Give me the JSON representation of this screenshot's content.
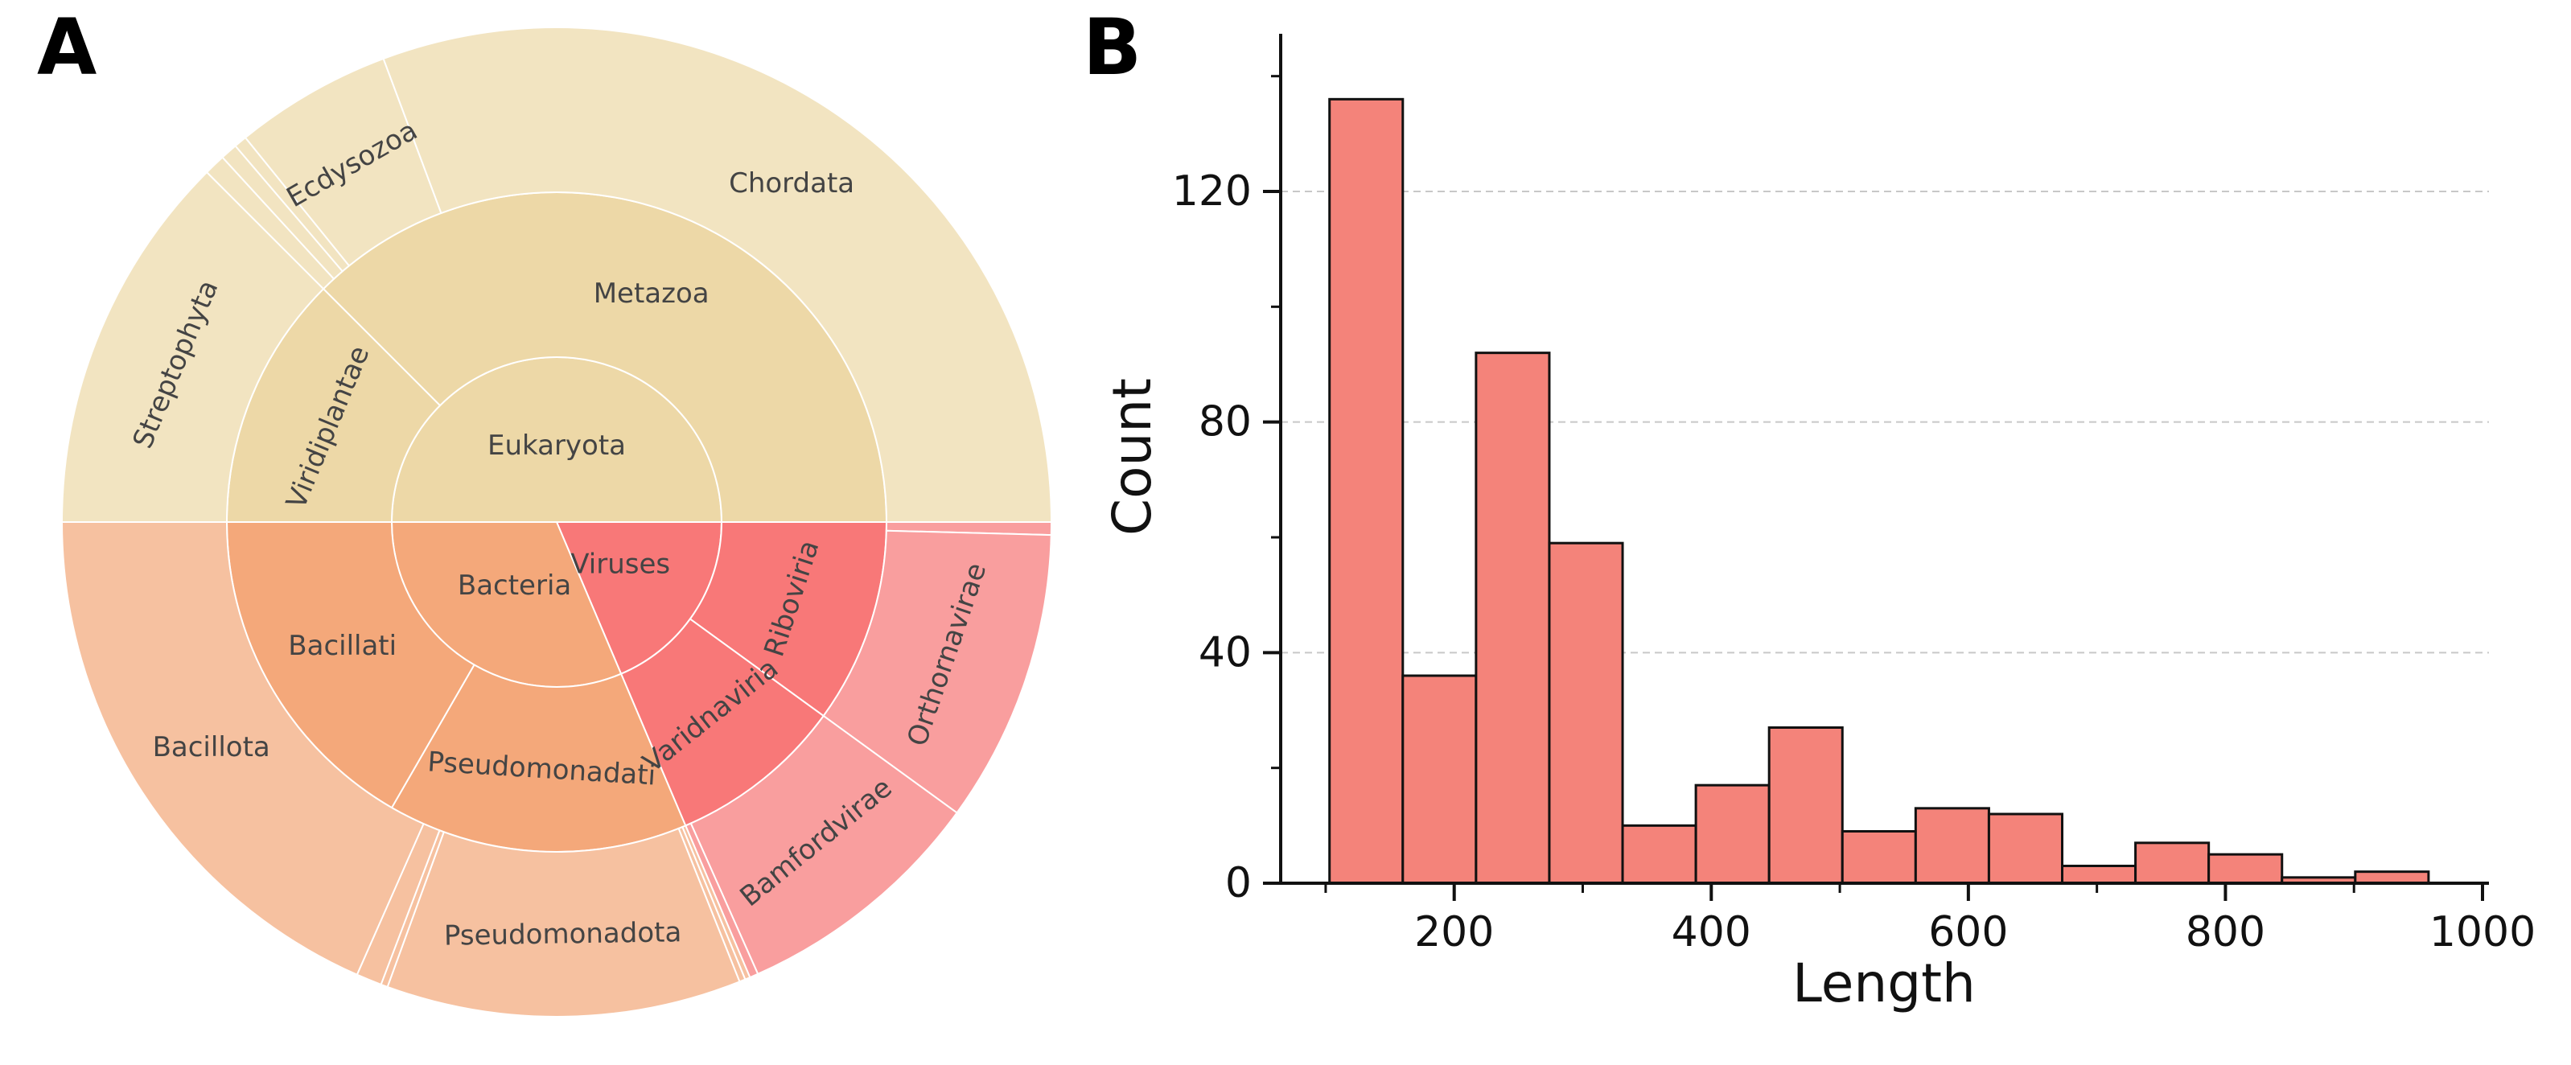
{
  "panels": {
    "a_label": "A",
    "b_label": "B"
  },
  "chart_data": [
    {
      "type": "sunburst",
      "panel": "A",
      "rings": [
        "domain",
        "kingdom",
        "phylum"
      ],
      "segments": [
        {
          "name": "Eukaryota",
          "ring": 0,
          "start": 0.0,
          "end": 180.0,
          "color": "#EDD8A7",
          "label": "Eukaryota"
        },
        {
          "name": "Viruses",
          "ring": 0,
          "start": 180.0,
          "end": 247.0,
          "color": "#F87878",
          "label": "Viruses"
        },
        {
          "name": "Bacteria",
          "ring": 0,
          "start": 247.0,
          "end": 360.0,
          "color": "#F4A87A",
          "label": "Bacteria"
        },
        {
          "name": "Viridiplantae",
          "ring": 1,
          "start": 0.0,
          "end": 45.0,
          "color": "#EDD8A7",
          "label": "Viridiplantae"
        },
        {
          "name": "Metazoa",
          "ring": 1,
          "start": 45.0,
          "end": 180.0,
          "color": "#EDD8A7",
          "label": "Metazoa"
        },
        {
          "name": "Riboviria",
          "ring": 1,
          "start": 180.0,
          "end": 216.0,
          "color": "#F87878",
          "label": "Riboviria"
        },
        {
          "name": "Varidnaviria",
          "ring": 1,
          "start": 216.0,
          "end": 247.0,
          "color": "#F87878",
          "label": "Varidnaviria"
        },
        {
          "name": "Pseudomonadati",
          "ring": 1,
          "start": 247.0,
          "end": 300.0,
          "color": "#F4A87A",
          "label": "Pseudomonadati"
        },
        {
          "name": "Bacillati",
          "ring": 1,
          "start": 300.0,
          "end": 360.0,
          "color": "#F4A87A",
          "label": "Bacillati"
        },
        {
          "name": "Streptophyta",
          "ring": 2,
          "start": 0.0,
          "end": 45.0,
          "color": "#F2E4C1",
          "label": "Streptophyta"
        },
        {
          "name": "",
          "ring": 2,
          "start": 45.0,
          "end": 47.5,
          "color": "#F2E4C1",
          "label": ""
        },
        {
          "name": "",
          "ring": 2,
          "start": 47.5,
          "end": 49.5,
          "color": "#F2E4C1",
          "label": ""
        },
        {
          "name": "",
          "ring": 2,
          "start": 49.5,
          "end": 51.0,
          "color": "#F2E4C1",
          "label": ""
        },
        {
          "name": "Ecdysozoa",
          "ring": 2,
          "start": 51.0,
          "end": 69.5,
          "color": "#F2E4C1",
          "label": "Ecdysozoa"
        },
        {
          "name": "Chordata",
          "ring": 2,
          "start": 69.5,
          "end": 180.0,
          "color": "#F2E4C1",
          "label": "Chordata"
        },
        {
          "name": "",
          "ring": 2,
          "start": 180.0,
          "end": 181.5,
          "color": "#F99E9E",
          "label": ""
        },
        {
          "name": "Orthornavirae",
          "ring": 2,
          "start": 181.5,
          "end": 216.0,
          "color": "#F99E9E",
          "label": "Orthornavirae"
        },
        {
          "name": "Bamfordvirae",
          "ring": 2,
          "start": 216.0,
          "end": 246.0,
          "color": "#F99E9E",
          "label": "Bamfordvirae"
        },
        {
          "name": "",
          "ring": 2,
          "start": 246.0,
          "end": 247.0,
          "color": "#F99E9E",
          "label": ""
        },
        {
          "name": "",
          "ring": 2,
          "start": 247.0,
          "end": 247.6,
          "color": "#F6C1A0",
          "label": ""
        },
        {
          "name": "",
          "ring": 2,
          "start": 247.6,
          "end": 248.3,
          "color": "#F6C1A0",
          "label": ""
        },
        {
          "name": "Pseudomonadota",
          "ring": 2,
          "start": 248.3,
          "end": 290.0,
          "color": "#F6C1A0",
          "label": "Pseudomonadota"
        },
        {
          "name": "",
          "ring": 2,
          "start": 290.0,
          "end": 290.8,
          "color": "#F6C1A0",
          "label": ""
        },
        {
          "name": "",
          "ring": 2,
          "start": 290.8,
          "end": 293.8,
          "color": "#F6C1A0",
          "label": ""
        },
        {
          "name": "Bacillota",
          "ring": 2,
          "start": 293.8,
          "end": 360.0,
          "color": "#F6C1A0",
          "label": "Bacillota"
        }
      ]
    },
    {
      "type": "histogram",
      "panel": "B",
      "xlabel": "Length",
      "ylabel": "Count",
      "xlim": [
        65,
        1005
      ],
      "ylim": [
        0,
        144
      ],
      "xticks": [
        200,
        400,
        600,
        800,
        1000
      ],
      "xtick_labels": [
        "200",
        "400",
        "600",
        "800",
        "1000"
      ],
      "yticks": [
        0,
        40,
        80,
        120
      ],
      "ytick_labels": [
        "0",
        "40",
        "80",
        "120"
      ],
      "grid": "y",
      "bar_color": "#F4837A",
      "bins": [
        {
          "x0": 103,
          "x1": 160,
          "count": 136
        },
        {
          "x0": 160,
          "x1": 217,
          "count": 36
        },
        {
          "x0": 217,
          "x1": 274,
          "count": 92
        },
        {
          "x0": 274,
          "x1": 331,
          "count": 59
        },
        {
          "x0": 331,
          "x1": 388,
          "count": 10
        },
        {
          "x0": 388,
          "x1": 445,
          "count": 17
        },
        {
          "x0": 445,
          "x1": 502,
          "count": 27
        },
        {
          "x0": 502,
          "x1": 559,
          "count": 9
        },
        {
          "x0": 559,
          "x1": 616,
          "count": 13
        },
        {
          "x0": 616,
          "x1": 673,
          "count": 12
        },
        {
          "x0": 673,
          "x1": 730,
          "count": 3
        },
        {
          "x0": 730,
          "x1": 787,
          "count": 7
        },
        {
          "x0": 787,
          "x1": 844,
          "count": 5
        },
        {
          "x0": 844,
          "x1": 901,
          "count": 1
        },
        {
          "x0": 901,
          "x1": 958,
          "count": 2
        }
      ]
    }
  ]
}
